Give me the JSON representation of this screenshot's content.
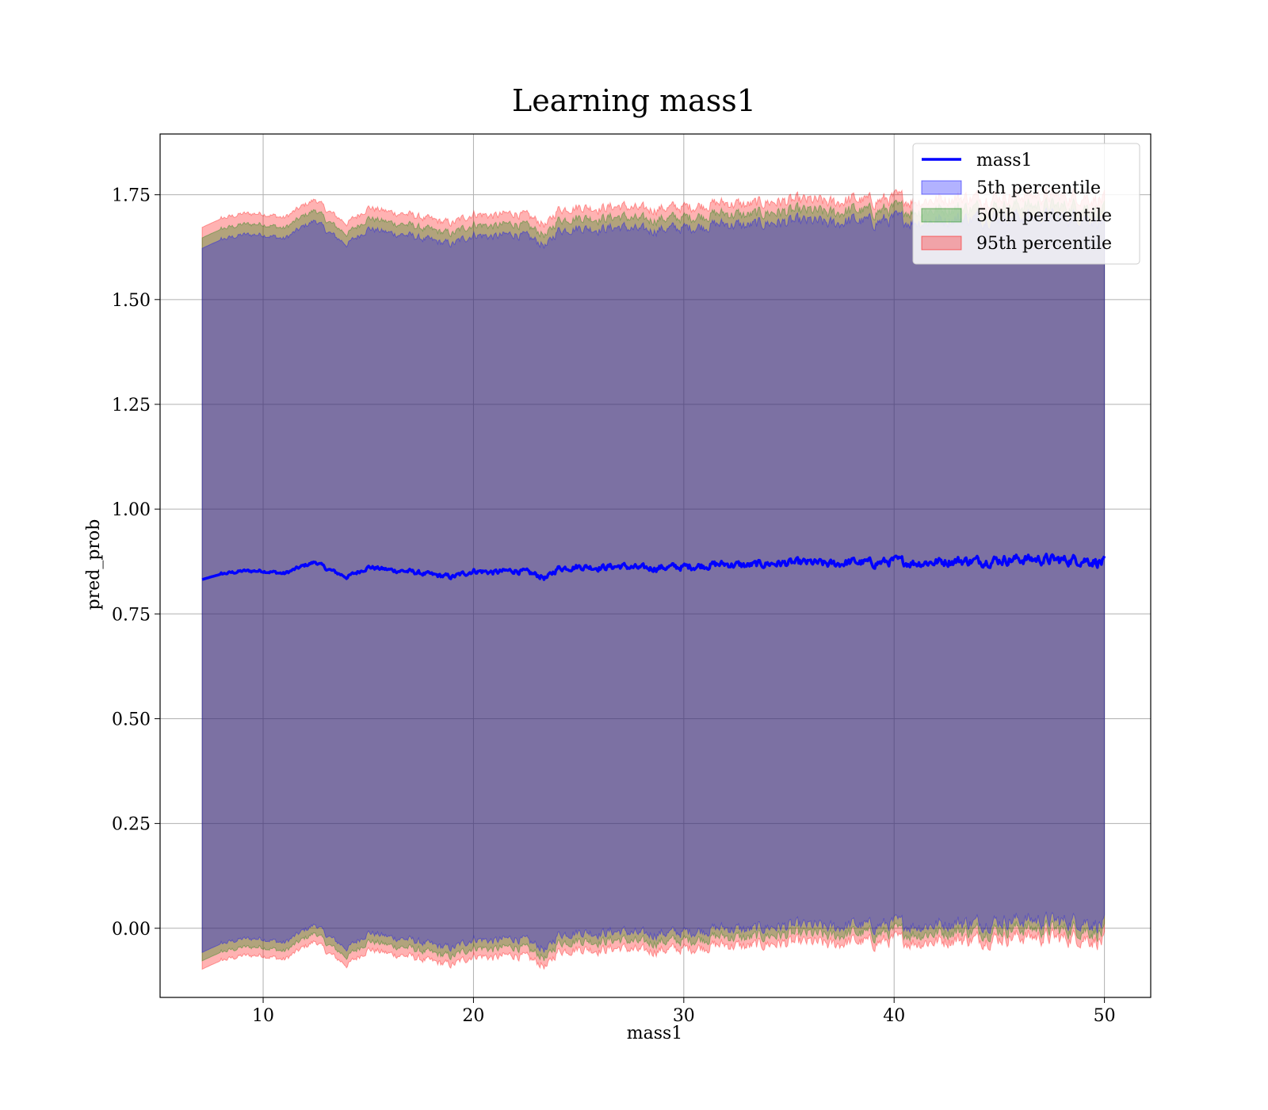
{
  "chart_data": {
    "type": "line",
    "title": "Learning mass1",
    "xlabel": "mass1",
    "ylabel": "pred_prob",
    "xlim": [
      5.1,
      52.2
    ],
    "ylim": [
      -0.165,
      1.895
    ],
    "x_range": [
      7.1,
      50.0
    ],
    "x_ticks": [
      10,
      20,
      30,
      40,
      50
    ],
    "y_ticks": [
      0.0,
      0.25,
      0.5,
      0.75,
      1.0,
      1.25,
      1.5,
      1.75
    ],
    "x_tick_labels": [
      "10",
      "20",
      "30",
      "40",
      "50"
    ],
    "y_tick_labels": [
      "0.00",
      "0.25",
      "0.50",
      "0.75",
      "1.00",
      "1.25",
      "1.50",
      "1.75"
    ],
    "grid": true,
    "legend_position": "top-right",
    "colors": {
      "line": "#0000ff",
      "band_5th": "#0000ff",
      "band_50th": "#008000",
      "band_95th": "#ff0000",
      "grid": "#b0b0b0"
    },
    "line_series": {
      "name": "mass1",
      "x": [
        7.1,
        8,
        9,
        10,
        11,
        12,
        12.5,
        13,
        14,
        15,
        16,
        17,
        18,
        19,
        20,
        21,
        22,
        23,
        23.5,
        24,
        25,
        26,
        27,
        28,
        29,
        30,
        31,
        32,
        33,
        34,
        35,
        36,
        37,
        38,
        39,
        40,
        41,
        42,
        43,
        44,
        45,
        46,
        47,
        48,
        49,
        50
      ],
      "y": [
        0.832,
        0.845,
        0.852,
        0.853,
        0.846,
        0.866,
        0.874,
        0.858,
        0.838,
        0.862,
        0.855,
        0.851,
        0.843,
        0.838,
        0.853,
        0.849,
        0.854,
        0.843,
        0.835,
        0.859,
        0.863,
        0.861,
        0.864,
        0.858,
        0.861,
        0.862,
        0.866,
        0.869,
        0.865,
        0.87,
        0.871,
        0.872,
        0.868,
        0.874,
        0.871,
        0.876,
        0.872,
        0.874,
        0.877,
        0.876,
        0.879,
        0.881,
        0.88,
        0.878,
        0.88,
        0.872
      ],
      "noise_amplitude": 0.02
    },
    "bands": [
      {
        "name": "5th percentile",
        "lower": -0.01,
        "upper": 1.67
      },
      {
        "name": "50th percentile",
        "lower": -0.03,
        "upper": 1.695
      },
      {
        "name": "95th percentile",
        "lower": -0.05,
        "upper": 1.72
      }
    ],
    "legend": [
      {
        "label": "mass1",
        "kind": "line"
      },
      {
        "label": "5th percentile",
        "kind": "patch"
      },
      {
        "label": "50th percentile",
        "kind": "patch"
      },
      {
        "label": "95th percentile",
        "kind": "patch"
      }
    ]
  }
}
